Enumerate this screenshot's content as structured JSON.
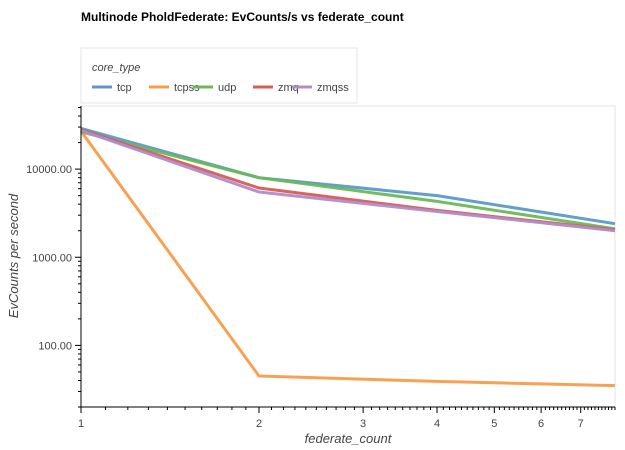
{
  "chart_data": {
    "type": "line",
    "title": "Multinode PholdFederate: EvCounts/s vs federate_count",
    "xlabel": "federate_count",
    "ylabel": "EvCounts per second",
    "x_scale": "log",
    "y_scale": "log",
    "xlim": [
      1,
      8
    ],
    "ylim": [
      20,
      52000
    ],
    "x_ticks": [
      1,
      2,
      3,
      4,
      5,
      6,
      7
    ],
    "y_ticks": [
      100,
      1000,
      10000
    ],
    "y_tick_labels": [
      "100.00",
      "1000.00",
      "10000.00"
    ],
    "grid": false,
    "legend": {
      "title": "core_type",
      "placement": "top-left",
      "orientation": "horizontal"
    },
    "series": [
      {
        "name": "tcp",
        "color": "#5b9ac8",
        "x": [
          1,
          2,
          4,
          8
        ],
        "y": [
          29000,
          8000,
          5000,
          2400
        ]
      },
      {
        "name": "tcpss",
        "color": "#f89c49",
        "x": [
          1,
          2,
          4,
          8
        ],
        "y": [
          27000,
          45,
          39,
          35
        ]
      },
      {
        "name": "udp",
        "color": "#6ab858",
        "x": [
          1,
          2,
          4,
          8
        ],
        "y": [
          26500,
          8000,
          4300,
          2100
        ]
      },
      {
        "name": "zmq",
        "color": "#d85c54",
        "x": [
          1,
          2,
          4,
          8
        ],
        "y": [
          28000,
          6100,
          3400,
          2050
        ]
      },
      {
        "name": "zmqss",
        "color": "#b08ccc",
        "x": [
          1,
          2,
          4,
          8
        ],
        "y": [
          27500,
          5500,
          3300,
          2000
        ]
      }
    ]
  }
}
